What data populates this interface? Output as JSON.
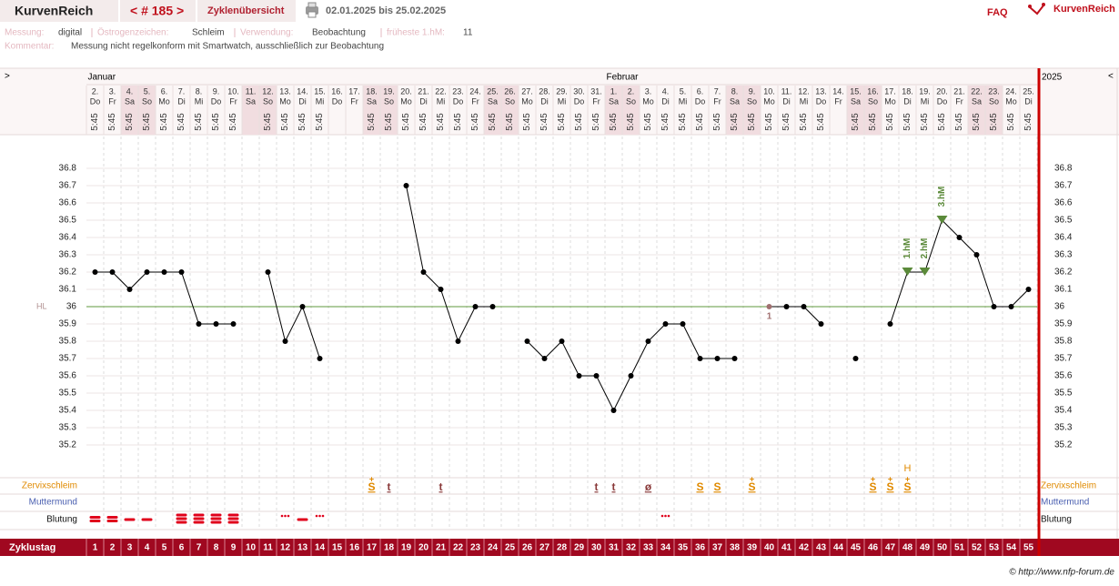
{
  "header": {
    "title": "KurvenReich",
    "cycle_nav": "< # 185 >",
    "overview": "Zyklenübersicht",
    "range": "02.01.2025 bis 25.02.2025",
    "faq": "FAQ",
    "logo": "KurvenReich"
  },
  "info": {
    "measure_label": "Messung:",
    "measure": "digital",
    "estrogen_label": "Östrogenzeichen:",
    "estrogen": "Schleim",
    "usage_label": "Verwendung:",
    "usage": "Beobachtung",
    "earliest_label": "früheste 1.hM:",
    "earliest": "11",
    "comment_label": "Kommentar:",
    "comment": "Messung nicht regelkonform mit Smartwatch, ausschließlich zur Beobachtung"
  },
  "chart_data": {
    "type": "line",
    "nav_left": ">",
    "nav_right": "<",
    "year": "2025",
    "months": [
      {
        "label": "Januar",
        "day": 1
      },
      {
        "label": "Februar",
        "day": 31
      }
    ],
    "dates": [
      "2.",
      "3.",
      "4.",
      "5.",
      "6.",
      "7.",
      "8.",
      "9.",
      "10.",
      "11.",
      "12.",
      "13.",
      "14.",
      "15.",
      "16.",
      "17.",
      "18.",
      "19.",
      "20.",
      "21.",
      "22.",
      "23.",
      "24.",
      "25.",
      "26.",
      "27.",
      "28.",
      "29.",
      "30.",
      "31.",
      "1.",
      "2.",
      "3.",
      "4.",
      "5.",
      "6.",
      "7.",
      "8.",
      "9.",
      "10.",
      "11.",
      "12.",
      "13.",
      "14.",
      "15.",
      "16.",
      "17.",
      "18.",
      "19.",
      "20.",
      "21.",
      "22.",
      "23.",
      "24.",
      "25."
    ],
    "weekdays": [
      "Do",
      "Fr",
      "Sa",
      "So",
      "Mo",
      "Di",
      "Mi",
      "Do",
      "Fr",
      "Sa",
      "So",
      "Mo",
      "Di",
      "Mi",
      "Do",
      "Fr",
      "Sa",
      "So",
      "Mo",
      "Di",
      "Mi",
      "Do",
      "Fr",
      "Sa",
      "So",
      "Mo",
      "Di",
      "Mi",
      "Do",
      "Fr",
      "Sa",
      "So",
      "Mo",
      "Di",
      "Mi",
      "Do",
      "Fr",
      "Sa",
      "So",
      "Mo",
      "Di",
      "Mi",
      "Do",
      "Fr",
      "Sa",
      "So",
      "Mo",
      "Di",
      "Mi",
      "Do",
      "Fr",
      "Sa",
      "So",
      "Mo",
      "Di"
    ],
    "times": [
      "5:45",
      "5:45",
      "5:45",
      "5:45",
      "5:45",
      "5:45",
      "5:45",
      "5:45",
      "5:45",
      null,
      "5:45",
      "5:45",
      "5:45",
      "5:45",
      null,
      null,
      "5:45",
      "5:45",
      "5:45",
      "5:45",
      "5:45",
      "5:45",
      "5:45",
      "5:45",
      "5:45",
      "5:45",
      "5:45",
      "5:45",
      "5:45",
      "5:45",
      "5:45",
      "5:45",
      "5:45",
      "5:45",
      "5:45",
      "5:45",
      "5:45",
      "5:45",
      "5:45",
      "5:45",
      "5:45",
      "5:45",
      "5:45",
      null,
      "5:45",
      "5:45",
      "5:45",
      "5:45",
      "5:45",
      "5:45",
      "5:45",
      "5:45",
      "5:45",
      "5:45",
      "5:45"
    ],
    "cycle_days_label": "Zyklustag",
    "cycle_days": [
      1,
      2,
      3,
      4,
      5,
      6,
      7,
      8,
      9,
      10,
      11,
      12,
      13,
      14,
      15,
      16,
      17,
      18,
      19,
      20,
      21,
      22,
      23,
      24,
      25,
      26,
      27,
      28,
      29,
      30,
      31,
      32,
      33,
      34,
      35,
      36,
      37,
      38,
      39,
      40,
      41,
      42,
      43,
      44,
      45,
      46,
      47,
      48,
      49,
      50,
      51,
      52,
      53,
      54,
      55
    ],
    "series": [
      {
        "name": "Temperatur",
        "color": "#000000",
        "values": [
          36.2,
          36.2,
          36.1,
          36.2,
          36.2,
          36.2,
          35.9,
          35.9,
          35.9,
          null,
          36.2,
          35.8,
          36.0,
          35.7,
          null,
          null,
          null,
          null,
          36.7,
          36.2,
          36.1,
          35.8,
          36.0,
          36.0,
          null,
          35.8,
          35.7,
          35.8,
          35.6,
          35.6,
          35.4,
          35.6,
          35.8,
          35.9,
          35.9,
          35.7,
          35.7,
          35.7,
          null,
          36.0,
          36.0,
          36.0,
          35.9,
          null,
          35.7,
          null,
          35.9,
          36.2,
          36.2,
          36.5,
          36.4,
          36.3,
          36.0,
          36.0,
          36.1
        ]
      }
    ],
    "ylim": [
      35.0,
      37.0
    ],
    "yticks": [
      35.2,
      35.3,
      35.4,
      35.5,
      35.6,
      35.7,
      35.8,
      35.9,
      {
        "value": 36,
        "label": "36"
      },
      36.1,
      36.2,
      36.3,
      36.4,
      36.5,
      36.6,
      36.7,
      36.8
    ],
    "cover_line": {
      "value": 36,
      "label": "HL",
      "color": "#5f9a3c"
    },
    "excluded": {
      "day": 40,
      "label": "1",
      "color": "#a07070"
    },
    "hm": {
      "color": "#5b8a3a",
      "points": [
        {
          "day": 48,
          "label": "1.hM"
        },
        {
          "day": 49,
          "label": "2.hM"
        },
        {
          "day": 50,
          "label": "3.hM"
        }
      ]
    },
    "cervix_label": "Zervixschleim",
    "cervix_peak": {
      "day": 48,
      "label": "H",
      "color": "#e08a00"
    },
    "cervix": [
      null,
      null,
      null,
      null,
      null,
      null,
      null,
      null,
      null,
      null,
      null,
      null,
      null,
      null,
      null,
      null,
      {
        "text": "S",
        "above": "+",
        "color": "#e08a00"
      },
      {
        "text": "t",
        "color": "#8a3a3a"
      },
      null,
      null,
      {
        "text": "t",
        "color": "#8a3a3a"
      },
      null,
      null,
      null,
      null,
      null,
      null,
      null,
      null,
      {
        "text": "t",
        "color": "#8a3a3a"
      },
      {
        "text": "t",
        "color": "#8a3a3a"
      },
      null,
      {
        "text": "ø",
        "color": "#8a3a3a"
      },
      null,
      null,
      {
        "text": "S",
        "color": "#e08a00"
      },
      {
        "text": "S",
        "color": "#e08a00"
      },
      null,
      {
        "text": "S",
        "above": "+",
        "color": "#e08a00"
      },
      null,
      null,
      null,
      null,
      null,
      null,
      {
        "text": "S",
        "above": "+",
        "color": "#e08a00"
      },
      {
        "text": "S",
        "above": "+",
        "color": "#e08a00"
      },
      {
        "text": "S",
        "above": "+",
        "color": "#e08a00"
      },
      null,
      null,
      null,
      null,
      null,
      null,
      null
    ],
    "cervix_pos_label": "Muttermund",
    "bleeding_label": "Blutung",
    "bleeding_color": "#e0001b",
    "bleeding": [
      3,
      3,
      2,
      2,
      null,
      4,
      4,
      4,
      4,
      null,
      null,
      1,
      2,
      1,
      null,
      null,
      null,
      null,
      null,
      null,
      null,
      null,
      null,
      null,
      null,
      null,
      null,
      null,
      null,
      null,
      null,
      null,
      null,
      1,
      null,
      null,
      null,
      null,
      null,
      null,
      null,
      null,
      null,
      null,
      null,
      null,
      null,
      null,
      null,
      null,
      null,
      null,
      null,
      null,
      null
    ]
  },
  "footer": "© http://www.nfp-forum.de"
}
